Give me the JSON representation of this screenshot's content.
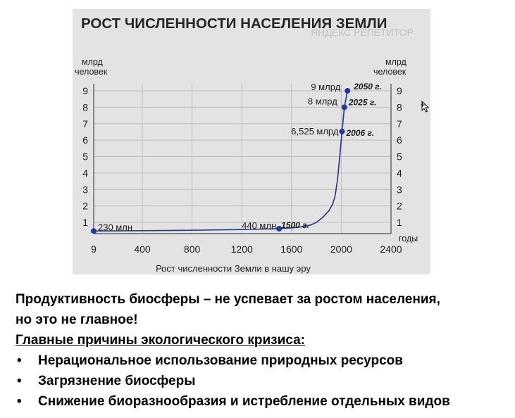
{
  "chart_data": {
    "type": "line",
    "title": "РОСТ ЧИСЛЕННОСТИ НАСЕЛЕНИЯ ЗЕМЛИ",
    "watermark": "ЯНДЕКС РЕПЕТИТОР",
    "xlabel": "Рост численности Земли в нашу эру",
    "ylabel_left": [
      "млрд",
      "человек"
    ],
    "ylabel_right": [
      "млрд",
      "человек"
    ],
    "x_unit_label": "годы",
    "x_ticks": [
      "9",
      "400",
      "800",
      "1200",
      "1600",
      "2000",
      "2400"
    ],
    "x_tick_values": [
      9,
      400,
      800,
      1200,
      1600,
      2000,
      2400
    ],
    "y_ticks": [
      "1",
      "2",
      "3",
      "4",
      "5",
      "6",
      "7",
      "8",
      "9"
    ],
    "y_tick_values": [
      1,
      2,
      3,
      4,
      5,
      6,
      7,
      8,
      9
    ],
    "xlim": [
      9,
      2400
    ],
    "ylim": [
      0,
      9.5
    ],
    "grid": true,
    "series": [
      {
        "x": [
          9,
          400,
          800,
          1200,
          1500,
          1650,
          1750,
          1800,
          1850,
          1900,
          1930,
          1950,
          1970,
          1985,
          2006,
          2025,
          2050
        ],
        "y": [
          0.23,
          0.26,
          0.3,
          0.36,
          0.44,
          0.55,
          0.75,
          1.0,
          1.3,
          1.7,
          2.1,
          2.6,
          3.6,
          4.8,
          6.525,
          8,
          9
        ]
      }
    ],
    "points": [
      {
        "x": 9,
        "y": 0.23,
        "value_label": "230 млн",
        "year_label": ""
      },
      {
        "x": 1500,
        "y": 0.44,
        "value_label": "440 млн",
        "year_label": "1500 г."
      },
      {
        "x": 2006,
        "y": 6.525,
        "value_label": "6,525 млрд",
        "year_label": "2006 г."
      },
      {
        "x": 2025,
        "y": 8,
        "value_label": "8 млрд",
        "year_label": "2025 г."
      },
      {
        "x": 2050,
        "y": 9,
        "value_label": "9 млрд",
        "year_label": "2050 г."
      }
    ]
  },
  "text": {
    "line1": "Продуктивность биосферы – не успевает за ростом населения,",
    "line2": "но это не главное!",
    "heading": "Главные причины экологического  кризиса:",
    "bullet_glyph": "•",
    "bullets": [
      "Нерациональное  использование  природных ресурсов",
      "Загрязнение биосферы",
      "Снижение биоразнообразия  и истребление  отдельных видов"
    ]
  }
}
